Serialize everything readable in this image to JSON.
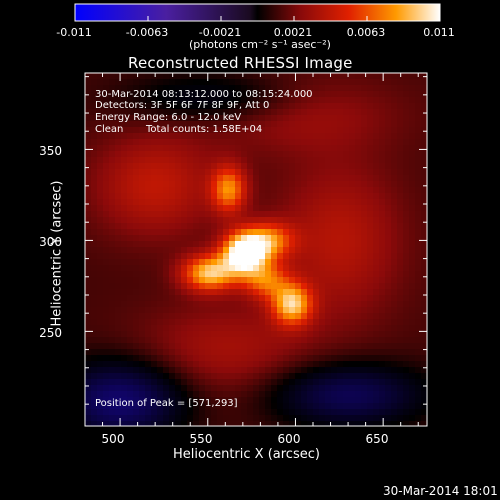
{
  "colorbar": {
    "min": -0.011,
    "max": 0.011,
    "tick_labels": [
      "-0.011",
      "-0.0063",
      "-0.0021",
      "0.0021",
      "0.0063",
      "0.011"
    ],
    "units_label": "(photons cm⁻² s⁻¹ asec⁻²)"
  },
  "chart_data": {
    "type": "heatmap",
    "title": "Reconstructed RHESSI Image",
    "xlabel": "Heliocentric X (arcsec)",
    "ylabel": "Heliocentric Y (arcsec)",
    "xlim": [
      480,
      675
    ],
    "ylim": [
      198,
      392
    ],
    "x_ticks": [
      500,
      550,
      600,
      650
    ],
    "y_ticks": [
      250,
      300,
      350
    ],
    "x_tick_labels": [
      "500",
      "550",
      "600",
      "650"
    ],
    "y_tick_labels": [
      "250",
      "300",
      "350"
    ],
    "annotations": {
      "time_range": "30-Mar-2014 08:13:12.000 to 08:15:24.000",
      "detectors": "Detectors: 3F 5F 6F 7F 8F 9F, Att 0",
      "energy": "Energy Range: 6.0 - 12.0 keV",
      "clean": "Clean",
      "total_counts": "Total counts: 1.58E+04",
      "peak": "Position of Peak = [571,293]"
    },
    "sources": [
      {
        "x": 571,
        "y": 293,
        "intensity": 1.0,
        "sx": 9,
        "sy": 8
      },
      {
        "x": 551,
        "y": 282,
        "intensity": 0.72,
        "sx": 11,
        "sy": 7
      },
      {
        "x": 598,
        "y": 265,
        "intensity": 0.68,
        "sx": 8,
        "sy": 8
      },
      {
        "x": 562,
        "y": 328,
        "intensity": 0.55,
        "sx": 7,
        "sy": 9
      },
      {
        "x": 585,
        "y": 300,
        "intensity": 0.5,
        "sx": 10,
        "sy": 7
      },
      {
        "x": 583,
        "y": 278,
        "intensity": 0.45,
        "sx": 9,
        "sy": 7
      },
      {
        "x": 520,
        "y": 330,
        "intensity": 0.28,
        "sx": 25,
        "sy": 20
      },
      {
        "x": 625,
        "y": 300,
        "intensity": 0.25,
        "sx": 25,
        "sy": 30
      },
      {
        "x": 560,
        "y": 240,
        "intensity": 0.2,
        "sx": 35,
        "sy": 18
      },
      {
        "x": 600,
        "y": 370,
        "intensity": 0.18,
        "sx": 40,
        "sy": 15
      }
    ],
    "negative_regions": [
      {
        "x": 500,
        "y": 212,
        "intensity": -0.55,
        "sx": 25,
        "sy": 15
      },
      {
        "x": 630,
        "y": 215,
        "intensity": -0.45,
        "sx": 30,
        "sy": 12
      },
      {
        "x": 555,
        "y": 378,
        "intensity": -0.25,
        "sx": 35,
        "sy": 10
      }
    ],
    "peak_position": [
      571,
      293
    ]
  },
  "footer": {
    "date": "30-Mar-2014 18:01"
  }
}
